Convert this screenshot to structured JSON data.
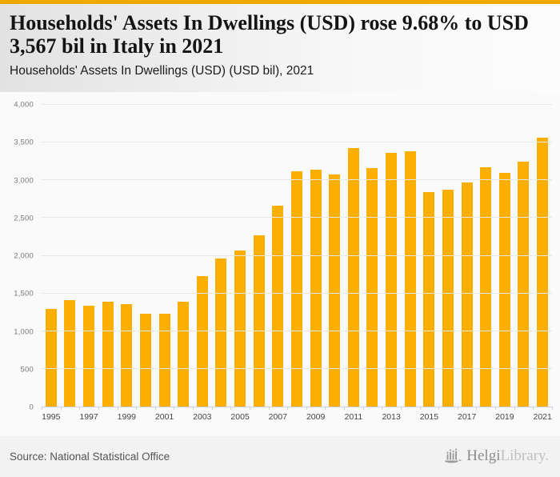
{
  "colors": {
    "accent": "#F0A802",
    "bar": "#FAAF02",
    "grid": "#E8E8E8",
    "axis": "#C8D0E2"
  },
  "header": {
    "title": "Households' Assets In Dwellings (USD) rose 9.68% to USD 3,567 bil in Italy in 2021",
    "subtitle": "Households' Assets In Dwellings (USD) (USD bil), 2021"
  },
  "chart_data": {
    "type": "bar",
    "title": "Households' Assets In Dwellings (USD) rose 9.68% to USD 3,567 bil in Italy in 2021",
    "subtitle": "Households' Assets In Dwellings (USD) (USD bil), 2021",
    "xlabel": "",
    "ylabel": "",
    "categories": [
      "1995",
      "1996",
      "1997",
      "1998",
      "1999",
      "2000",
      "2001",
      "2002",
      "2003",
      "2004",
      "2005",
      "2006",
      "2007",
      "2008",
      "2009",
      "2010",
      "2011",
      "2012",
      "2013",
      "2014",
      "2015",
      "2016",
      "2017",
      "2018",
      "2019",
      "2020",
      "2021"
    ],
    "values": [
      1290,
      1410,
      1340,
      1395,
      1360,
      1230,
      1230,
      1390,
      1725,
      1965,
      2065,
      2270,
      2660,
      3120,
      3140,
      3075,
      3430,
      3160,
      3365,
      3385,
      2845,
      2875,
      2970,
      3175,
      3095,
      3252,
      3567
    ],
    "x_tick_labels": [
      "1995",
      "1997",
      "1999",
      "2001",
      "2003",
      "2005",
      "2007",
      "2009",
      "2011",
      "2013",
      "2015",
      "2017",
      "2019",
      "2021"
    ],
    "y_ticks": [
      0,
      500,
      1000,
      1500,
      2000,
      2500,
      3000,
      3500,
      4000
    ],
    "ylim": [
      0,
      4000
    ],
    "grid": true,
    "legend": "none",
    "bar_color": "#FAAF02"
  },
  "footer": {
    "source": "Source: National Statistical Office",
    "brand": {
      "primary": "Helgi",
      "secondary": "Library."
    }
  }
}
